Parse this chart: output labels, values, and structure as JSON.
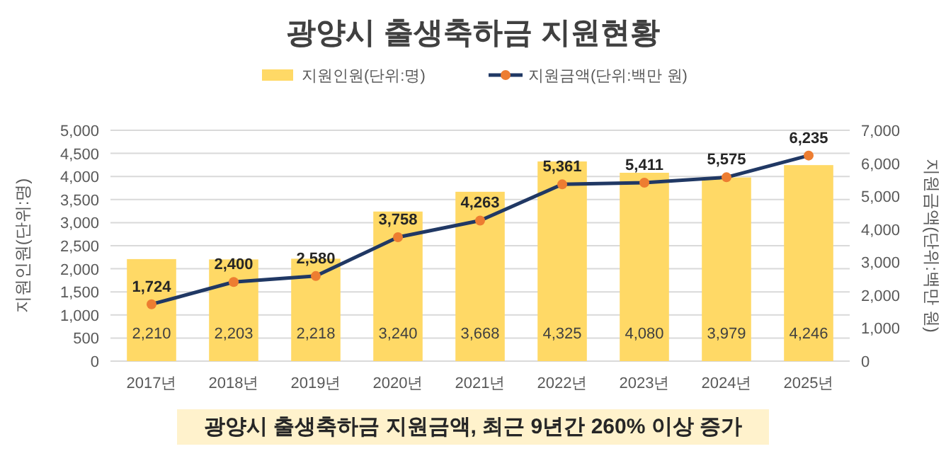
{
  "chart_data": {
    "type": "bar",
    "title": "광양시 출생축하금 지원현황",
    "categories": [
      "2017년",
      "2018년",
      "2019년",
      "2020년",
      "2021년",
      "2022년",
      "2023년",
      "2024년",
      "2025년"
    ],
    "series": [
      {
        "name": "지원인원(단위:명)",
        "color": "#ffd966",
        "values": [
          2210,
          2203,
          2218,
          3240,
          3668,
          4325,
          4080,
          3979,
          4246
        ],
        "value_labels": [
          "2,210",
          "2,203",
          "2,218",
          "3,240",
          "3,668",
          "4,325",
          "4,080",
          "3,979",
          "4,246"
        ]
      },
      {
        "name": "지원금액(단위:백만 원)",
        "type": "line",
        "axis": "y2",
        "color": "#203864",
        "marker": "circle",
        "values": [
          1724,
          2400,
          2580,
          3758,
          4263,
          5361,
          5411,
          5575,
          6235
        ],
        "value_labels": [
          "1,724",
          "2,400",
          "2,580",
          "3,758",
          "4,263",
          "5,361",
          "5,411",
          "5,575",
          "6,235"
        ]
      }
    ],
    "ylabel": "지원인원(단위:명)",
    "y2label": "지원금액(단위:백만 원)",
    "ylim": [
      0,
      5000
    ],
    "yticks": [
      0,
      {
        "value": 500,
        "label": "500"
      },
      {
        "value": 1000,
        "label": "1,000"
      },
      {
        "value": 1500,
        "label": "1,500"
      },
      {
        "value": 2000,
        "label": "2,000"
      },
      {
        "value": 2500,
        "label": "2,500"
      },
      {
        "value": 3000,
        "label": "3,000"
      },
      {
        "value": 3500,
        "label": "3,500"
      },
      {
        "value": 4000,
        "label": "4,000"
      },
      {
        "value": 4500,
        "label": "4,500"
      },
      {
        "value": 5000,
        "label": "5,000"
      }
    ],
    "y2lim": [
      0,
      7000
    ],
    "y2ticks": [
      0,
      {
        "value": 1000,
        "label": "1,000"
      },
      {
        "value": 2000,
        "label": "2,000"
      },
      {
        "value": 3000,
        "label": "3,000"
      },
      {
        "value": 4000,
        "label": "4,000"
      },
      {
        "value": 5000,
        "label": "5,000"
      },
      {
        "value": 6000,
        "label": "6,000"
      },
      {
        "value": 7000,
        "label": "7,000"
      }
    ],
    "grid": "y",
    "legend": "top",
    "annotations": [
      "광양시 출생축하금 지원금액, 최근 9년간 260% 이상 증가"
    ]
  }
}
